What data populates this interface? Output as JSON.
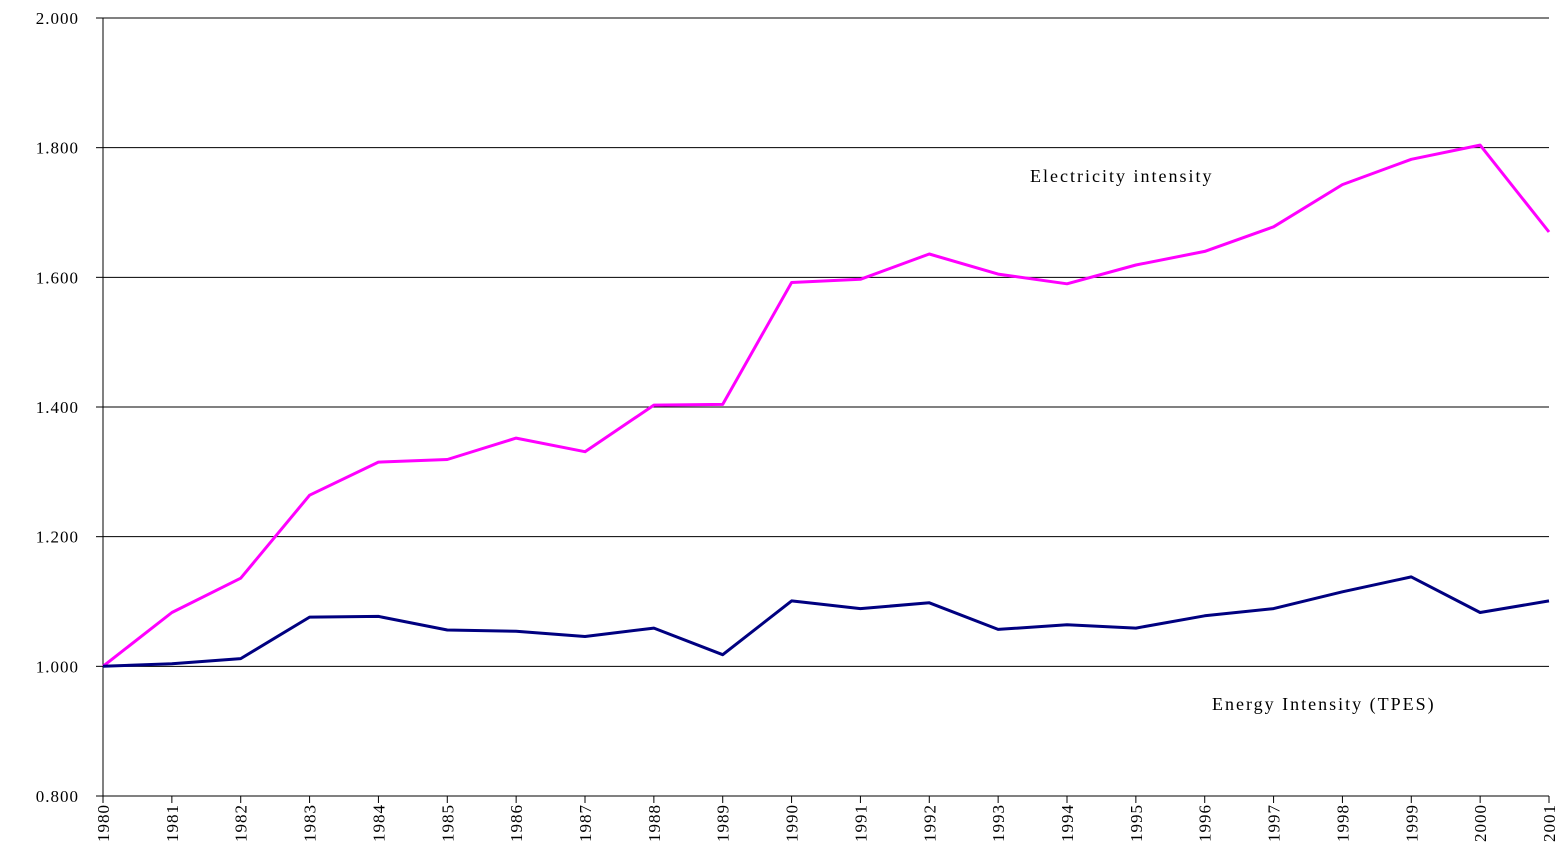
{
  "chart_data": {
    "type": "line",
    "x": [
      "1980",
      "1981",
      "1982",
      "1983",
      "1984",
      "1985",
      "1986",
      "1987",
      "1988",
      "1989",
      "1990",
      "1991",
      "1992",
      "1993",
      "1994",
      "1995",
      "1996",
      "1997",
      "1998",
      "1999",
      "2000",
      "2001"
    ],
    "ylim": [
      0.8,
      2.0
    ],
    "yticks": [
      "0.800",
      "1.000",
      "1.200",
      "1.400",
      "1.600",
      "1.800",
      "2.000"
    ],
    "grid": true,
    "series": [
      {
        "name": "Electricity intensity",
        "color": "#ff00ff",
        "values": [
          1.0,
          1.083,
          1.136,
          1.264,
          1.315,
          1.319,
          1.352,
          1.331,
          1.403,
          1.404,
          1.592,
          1.597,
          1.636,
          1.605,
          1.59,
          1.619,
          1.64,
          1.678,
          1.743,
          1.782,
          1.804,
          1.67
        ]
      },
      {
        "name": "Energy Intensity (TPES)",
        "color": "#000080",
        "values": [
          1.0,
          1.004,
          1.012,
          1.076,
          1.077,
          1.056,
          1.054,
          1.046,
          1.059,
          1.018,
          1.101,
          1.089,
          1.098,
          1.057,
          1.064,
          1.059,
          1.078,
          1.089,
          1.115,
          1.138,
          1.083,
          1.101
        ]
      }
    ]
  }
}
